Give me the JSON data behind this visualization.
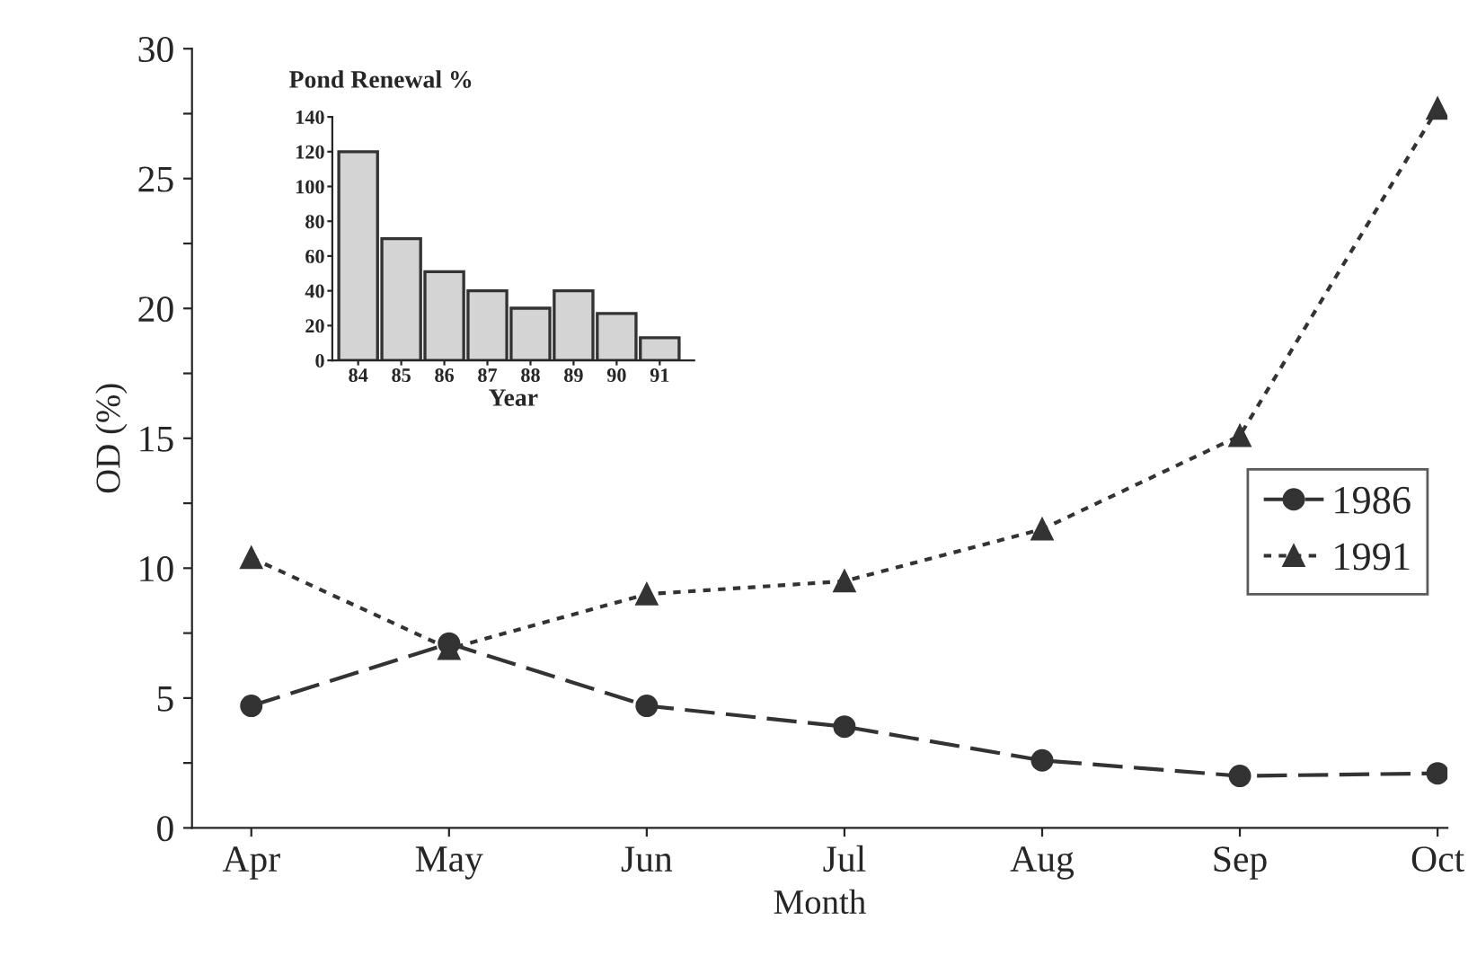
{
  "chart_data": [
    {
      "type": "line",
      "xlabel": "Month",
      "ylabel": "OD (%)",
      "categories": [
        "Apr",
        "May",
        "Jun",
        "Jul",
        "Aug",
        "Sep",
        "Oct"
      ],
      "series": [
        {
          "name": "1986",
          "color": "#333333",
          "marker": "circle",
          "line_style": "dashed",
          "values": [
            4.7,
            7.1,
            4.7,
            3.9,
            2.6,
            2.0,
            2.1
          ]
        },
        {
          "name": "1991",
          "color": "#333333",
          "marker": "triangle",
          "line_style": "dotted",
          "values": [
            10.4,
            6.9,
            9.0,
            9.5,
            11.5,
            15.1,
            27.7
          ]
        }
      ],
      "ylim": [
        0,
        30
      ],
      "yticks": [
        0,
        {
          "value": 2.5,
          "label": null
        },
        5,
        {
          "value": 7.5,
          "label": null
        },
        10,
        {
          "value": 12.5,
          "label": null
        },
        15,
        {
          "value": 17.5,
          "label": null
        },
        20,
        {
          "value": 22.5,
          "label": null
        },
        25,
        {
          "value": 27.5,
          "label": null
        },
        30
      ],
      "grid": false,
      "legend": "right"
    },
    {
      "type": "bar",
      "title": "Pond Renewal %",
      "xlabel": "Year",
      "categories": [
        "84",
        "85",
        "86",
        "87",
        "88",
        "89",
        "90",
        "91"
      ],
      "values": [
        120,
        70,
        51,
        40,
        30,
        40,
        27,
        13
      ],
      "color": "#d4d4d4",
      "ylim": [
        0,
        140
      ],
      "yticks": [
        0,
        20,
        40,
        60,
        80,
        100,
        120,
        140
      ],
      "grid": false
    }
  ]
}
